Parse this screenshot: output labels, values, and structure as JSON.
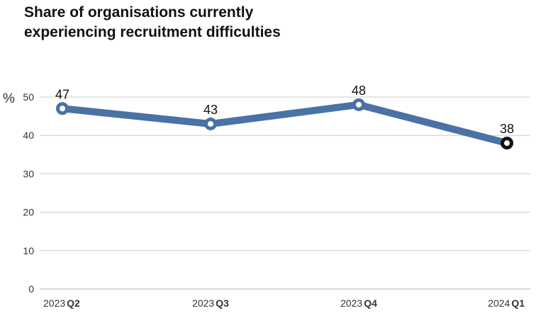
{
  "title_lines": [
    "Share of organisations currently",
    "experiencing recruitment difficulties"
  ],
  "colors": {
    "line": "#4a72a4",
    "last_marker": "#111111",
    "grid": "#cccccc",
    "text": "#333333"
  },
  "chart_data": {
    "type": "line",
    "title": "Share of organisations currently experiencing recruitment difficulties",
    "ylabel": "%",
    "xlabel": "",
    "ylim": [
      0,
      50
    ],
    "yticks": [
      0,
      10,
      20,
      30,
      40,
      50
    ],
    "grid": true,
    "legend": "none",
    "categories": [
      {
        "year": "2023",
        "quarter": "Q2"
      },
      {
        "year": "2023",
        "quarter": "Q3"
      },
      {
        "year": "2023",
        "quarter": "Q4"
      },
      {
        "year": "2024",
        "quarter": "Q1"
      }
    ],
    "series": [
      {
        "values": [
          47,
          43,
          48,
          38
        ],
        "data_labels": [
          "47",
          "43",
          "48",
          "38"
        ]
      }
    ]
  }
}
